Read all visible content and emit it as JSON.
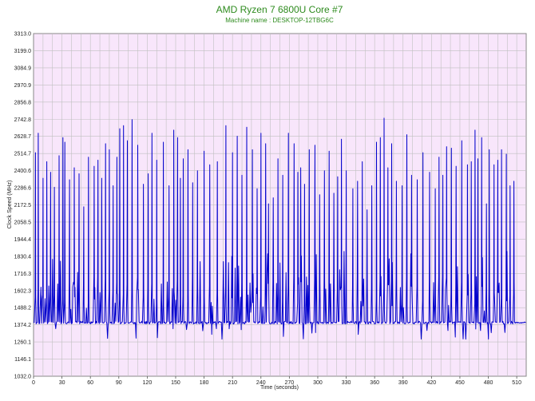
{
  "chart_data": {
    "type": "line",
    "title": "AMD Ryzen 7 6800U Core #7",
    "subtitle": "Machine name : DESKTOP-12TBG6C",
    "xlabel": "Time (seconds)",
    "ylabel": "Clock Speed (MHz)",
    "xlim": [
      0,
      520
    ],
    "ylim": [
      1032.0,
      3313.0
    ],
    "x_ticks": [
      "0",
      "30",
      "60",
      "90",
      "120",
      "150",
      "180",
      "210",
      "240",
      "270",
      "300",
      "330",
      "360",
      "390",
      "420",
      "450",
      "480",
      "510"
    ],
    "y_ticks": [
      "3313.0",
      "3199.0",
      "3084.9",
      "2970.9",
      "2856.8",
      "2742.8",
      "2628.7",
      "2514.7",
      "2400.6",
      "2286.6",
      "2172.5",
      "2058.5",
      "1944.4",
      "1830.4",
      "1716.3",
      "1602.3",
      "1488.2",
      "1374.2",
      "1260.1",
      "1146.1",
      "1032.0"
    ],
    "grid": true,
    "legend": "none",
    "series": [
      {
        "color": "#0000cc",
        "baseline": 1389,
        "x": [
          2,
          5,
          10,
          14,
          18,
          22,
          27,
          31,
          33,
          38,
          43,
          48,
          53,
          58,
          64,
          68,
          72,
          76,
          80,
          84,
          88,
          91,
          95,
          99,
          104,
          110,
          116,
          121,
          125,
          130,
          137,
          143,
          148,
          152,
          155,
          158,
          163,
          168,
          173,
          180,
          186,
          194,
          203,
          210,
          215,
          220,
          225,
          231,
          236,
          240,
          245,
          248,
          253,
          258,
          263,
          269,
          275,
          279,
          282,
          286,
          291,
          297,
          302,
          307,
          312,
          317,
          321,
          325,
          330,
          337,
          342,
          347,
          352,
          357,
          362,
          366,
          370,
          374,
          378,
          383,
          389,
          394,
          399,
          405,
          411,
          418,
          424,
          428,
          432,
          436,
          441,
          446,
          452,
          458,
          462,
          466,
          469,
          473,
          478,
          481,
          486,
          490,
          494,
          499,
          503,
          507
        ],
        "values": [
          2520,
          2650,
          2350,
          2460,
          2390,
          2290,
          2500,
          2620,
          2590,
          2340,
          2420,
          2380,
          2160,
          2490,
          2430,
          2470,
          2350,
          2580,
          2540,
          2300,
          2490,
          2680,
          2700,
          2600,
          2740,
          2570,
          2310,
          2380,
          2650,
          2470,
          2590,
          2300,
          2670,
          2620,
          2350,
          2480,
          2540,
          2320,
          2400,
          2530,
          2440,
          2460,
          2700,
          2520,
          2630,
          2370,
          2690,
          2540,
          2280,
          2650,
          2580,
          2180,
          2220,
          2480,
          2370,
          2650,
          2580,
          2390,
          2420,
          2310,
          2540,
          2570,
          2240,
          2400,
          2530,
          2250,
          2360,
          2610,
          2400,
          2280,
          2330,
          2460,
          2140,
          2300,
          2590,
          2620,
          2750,
          2420,
          2580,
          2330,
          2300,
          2640,
          2370,
          2340,
          2520,
          2390,
          2280,
          2490,
          2370,
          2560,
          2550,
          2430,
          2600,
          2440,
          2460,
          2670,
          2480,
          2620,
          2180,
          2540,
          2440,
          2470,
          2540,
          2510,
          2300,
          2330
        ]
      }
    ]
  }
}
